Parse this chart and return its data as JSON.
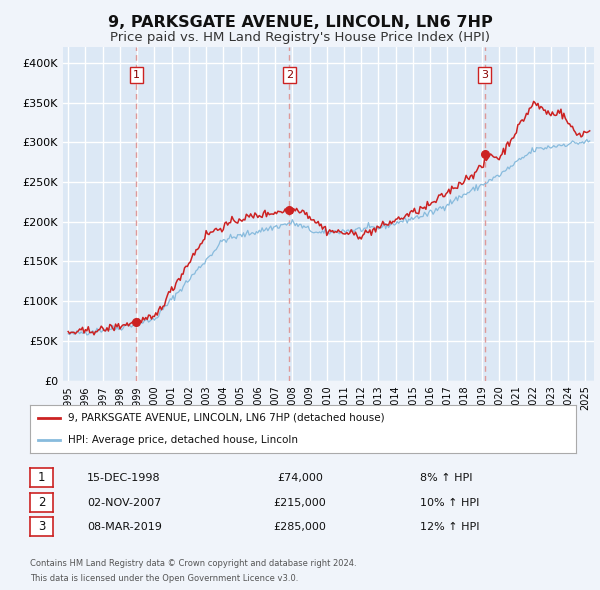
{
  "title": "9, PARKSGATE AVENUE, LINCOLN, LN6 7HP",
  "subtitle": "Price paid vs. HM Land Registry's House Price Index (HPI)",
  "title_fontsize": 11.5,
  "subtitle_fontsize": 9.5,
  "ylim": [
    0,
    420000
  ],
  "xlim_start": 1994.7,
  "xlim_end": 2025.5,
  "background_color": "#f0f4fa",
  "plot_bg_color": "#dce8f5",
  "grid_color": "#ffffff",
  "sale_line_color": "#cc2222",
  "hpi_line_color": "#88bbdd",
  "sale_dot_color": "#cc2222",
  "vertical_line_color": "#dd9999",
  "sales": [
    {
      "year": 1998.958,
      "price": 74000,
      "label": "1"
    },
    {
      "year": 2007.833,
      "price": 215000,
      "label": "2"
    },
    {
      "year": 2019.167,
      "price": 285000,
      "label": "3"
    }
  ],
  "sale_table": [
    {
      "num": "1",
      "date": "15-DEC-1998",
      "price": "£74,000",
      "pct": "8% ↑ HPI"
    },
    {
      "num": "2",
      "date": "02-NOV-2007",
      "price": "£215,000",
      "pct": "10% ↑ HPI"
    },
    {
      "num": "3",
      "date": "08-MAR-2019",
      "price": "£285,000",
      "pct": "12% ↑ HPI"
    }
  ],
  "legend_label_sale": "9, PARKSGATE AVENUE, LINCOLN, LN6 7HP (detached house)",
  "legend_label_hpi": "HPI: Average price, detached house, Lincoln",
  "footer_line1": "Contains HM Land Registry data © Crown copyright and database right 2024.",
  "footer_line2": "This data is licensed under the Open Government Licence v3.0.",
  "yticks": [
    0,
    50000,
    100000,
    150000,
    200000,
    250000,
    300000,
    350000,
    400000
  ],
  "ytick_labels": [
    "£0",
    "£50K",
    "£100K",
    "£150K",
    "£200K",
    "£250K",
    "£300K",
    "£350K",
    "£400K"
  ]
}
